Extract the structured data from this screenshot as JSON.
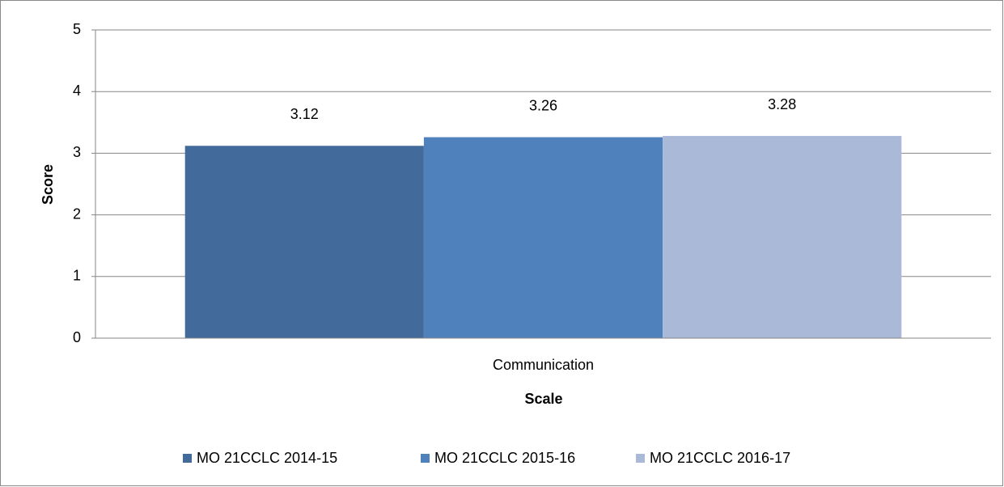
{
  "chart_data": {
    "type": "bar",
    "y_label": "Score",
    "x_label": "Scale",
    "categories": [
      "Communication"
    ],
    "series": [
      {
        "name": "MO 21CCLC 2014-15",
        "color": "#426a9b",
        "values": [
          3.12
        ]
      },
      {
        "name": "MO 21CCLC 2015-16",
        "color": "#4f81bd",
        "values": [
          3.26
        ]
      },
      {
        "name": "MO 21CCLC 2016-17",
        "color": "#aab9d7",
        "values": [
          3.28
        ]
      }
    ],
    "ylim": [
      0,
      5
    ],
    "yticks": [
      0,
      1,
      2,
      3,
      4,
      5
    ],
    "grid": true,
    "legend": "bottom"
  }
}
